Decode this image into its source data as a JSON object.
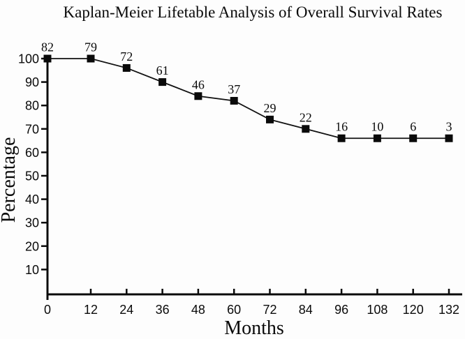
{
  "chart_data": {
    "type": "line",
    "title": "Kaplan-Meier Lifetable Analysis of Overall Survival Rates",
    "xlabel": "Months",
    "ylabel": "Percentage",
    "x": [
      0,
      12,
      24,
      36,
      48,
      60,
      72,
      84,
      96,
      108,
      120,
      132
    ],
    "values": [
      100,
      100,
      96,
      90,
      84,
      82,
      74,
      70,
      66,
      66,
      66,
      66
    ],
    "point_labels": [
      "82",
      "79",
      "72",
      "61",
      "46",
      "37",
      "29",
      "22",
      "16",
      "10",
      "6",
      "3"
    ],
    "xticks": [
      "0",
      "12",
      "24",
      "36",
      "48",
      "60",
      "72",
      "84",
      "96",
      "108",
      "120",
      "132"
    ],
    "yticks": [
      "10",
      "20",
      "30",
      "40",
      "50",
      "60",
      "70",
      "80",
      "90",
      "100"
    ],
    "xlim": [
      0,
      132
    ],
    "ylim": [
      0,
      105
    ],
    "marker": "filled-square",
    "grid": false,
    "legend": null,
    "colors": {
      "line": "#111111",
      "marker": "#0a0a0a",
      "text": "#0a0a0a",
      "background": "#ffffff"
    }
  }
}
